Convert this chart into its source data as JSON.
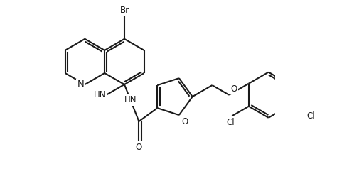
{
  "bg_color": "#ffffff",
  "line_color": "#1a1a1a",
  "line_width": 1.5,
  "font_size": 8.5,
  "figsize": [
    4.74,
    2.38
  ],
  "dpi": 100,
  "xlim": [
    -1.5,
    12.5
  ],
  "ylim": [
    -5.5,
    5.5
  ]
}
